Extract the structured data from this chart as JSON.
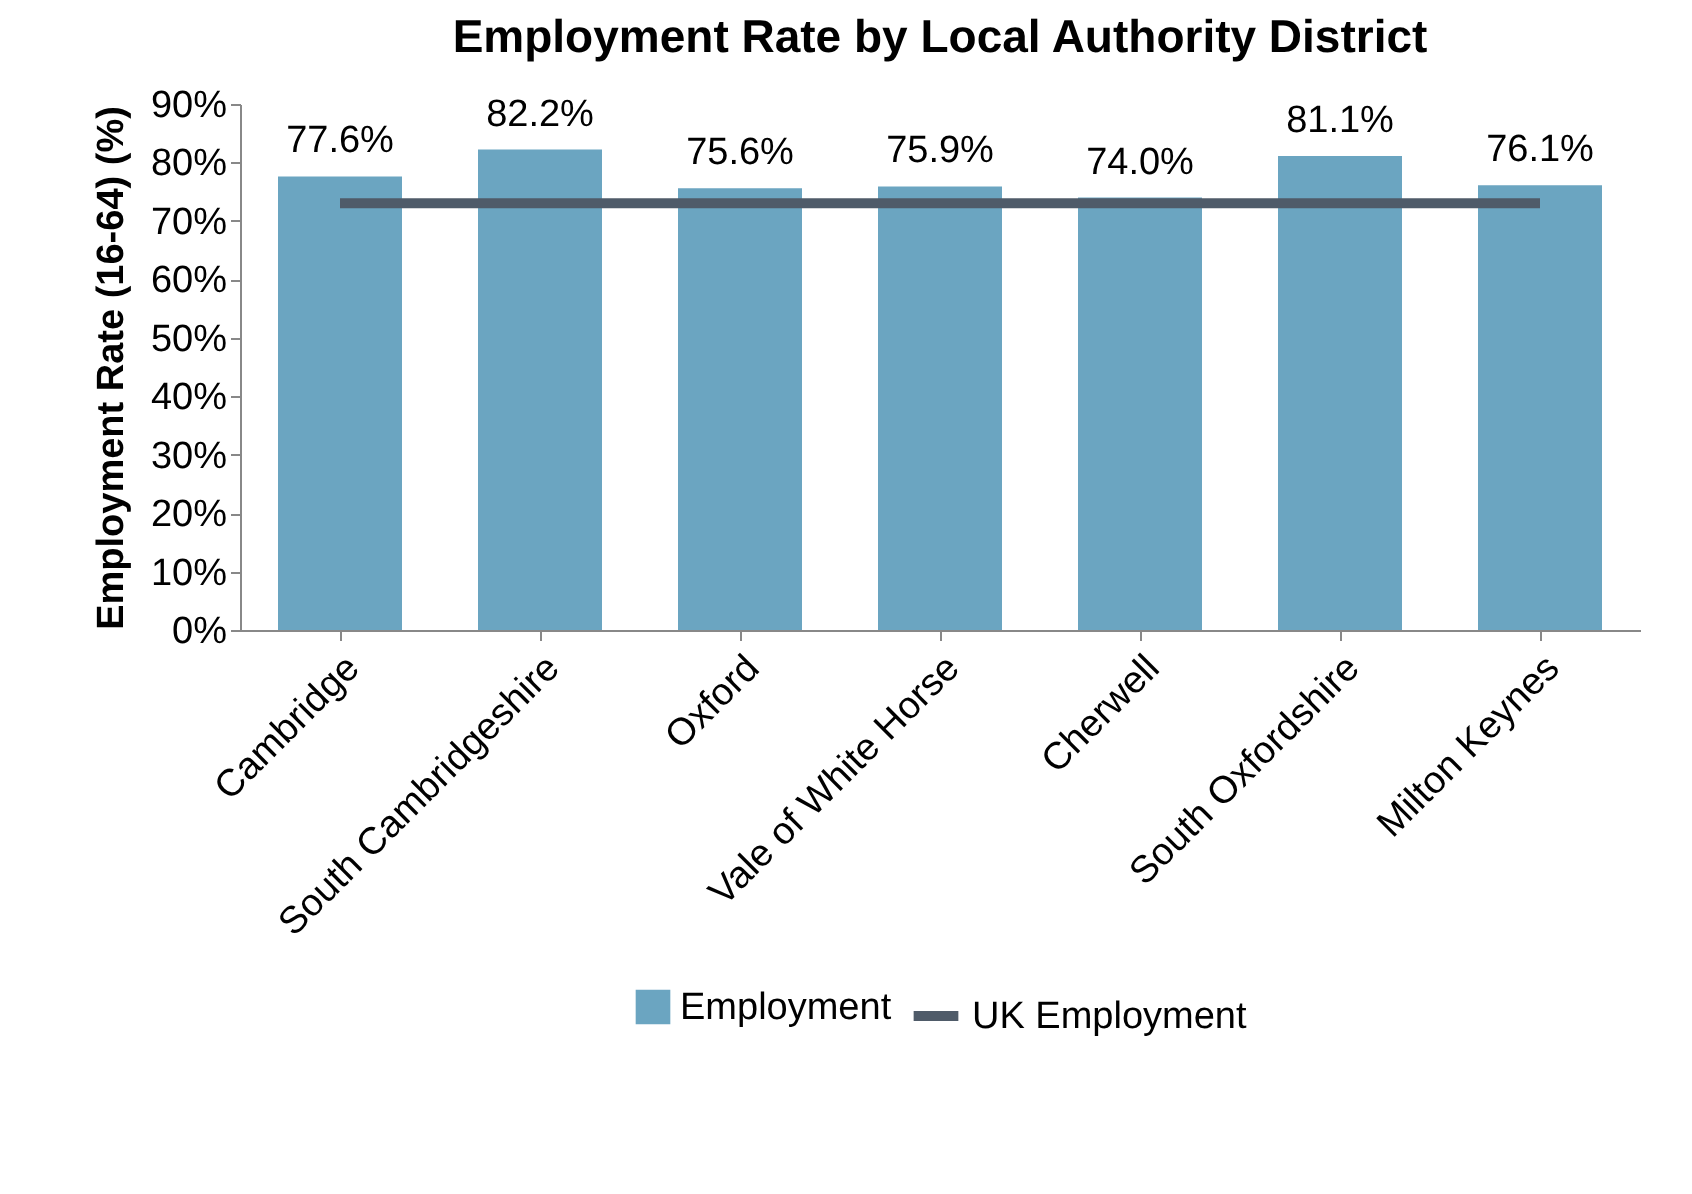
{
  "chart_data": {
    "type": "bar",
    "title": "Employment Rate by Local Authority District",
    "ylabel": "Employment Rate (16-64) (%)",
    "categories": [
      "Cambridge",
      "South Cambridgeshire",
      "Oxford",
      "Vale of White Horse",
      "Cherwell",
      "South Oxfordshire",
      "Milton Keynes"
    ],
    "series": [
      {
        "name": "Employment",
        "color": "#6ba5c1",
        "values": [
          77.6,
          82.2,
          75.6,
          75.9,
          74.0,
          81.1,
          76.1
        ],
        "value_labels": [
          "77.6%",
          "82.2%",
          "75.6%",
          "75.9%",
          "74.0%",
          "81.1%",
          "76.1%"
        ]
      },
      {
        "name": "UK Employment",
        "type": "line",
        "color": "#4f5b69",
        "values": [
          73,
          73,
          73,
          73,
          73,
          73,
          73
        ]
      }
    ],
    "ylim": [
      0,
      90
    ],
    "yticks": [
      {
        "value": 0,
        "label": "0%"
      },
      {
        "value": 10,
        "label": "10%"
      },
      {
        "value": 20,
        "label": "20%"
      },
      {
        "value": 30,
        "label": "30%"
      },
      {
        "value": 40,
        "label": "40%"
      },
      {
        "value": 50,
        "label": "50%"
      },
      {
        "value": 60,
        "label": "60%"
      },
      {
        "value": 70,
        "label": "70%"
      },
      {
        "value": 80,
        "label": "80%"
      },
      {
        "value": 90,
        "label": "90%"
      }
    ],
    "grid": false,
    "legend": "bottom"
  }
}
